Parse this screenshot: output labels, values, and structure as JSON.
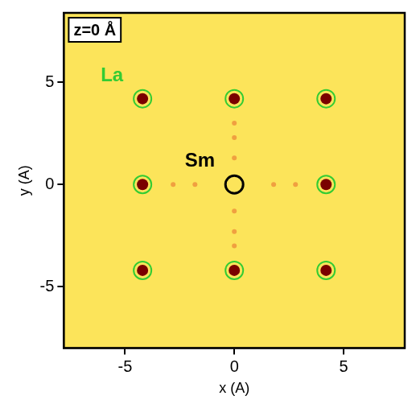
{
  "chart_data": {
    "type": "scatter",
    "annotation": "z=0 Å",
    "xlabel": "x (A)",
    "ylabel": "y (A)",
    "xlim": [
      -7.8,
      7.8
    ],
    "ylim": [
      -8,
      8.4
    ],
    "xticks": [
      -5,
      0,
      5
    ],
    "yticks": [
      -5,
      0,
      5
    ],
    "grid": false,
    "series": [
      {
        "color": "#7a0000",
        "marker": "circle",
        "points": [
          [
            -4.2,
            4.2
          ],
          [
            0,
            4.2
          ],
          [
            4.2,
            4.2
          ],
          [
            -4.2,
            0
          ],
          [
            4.2,
            0
          ],
          [
            -4.2,
            -4.2
          ],
          [
            0,
            -4.2
          ],
          [
            4.2,
            -4.2
          ]
        ]
      },
      {
        "color": "#f0a040",
        "marker": "circle",
        "points": [
          [
            0,
            1.3
          ],
          [
            0,
            2.3
          ],
          [
            0,
            3.0
          ],
          [
            0,
            -1.3
          ],
          [
            0,
            -2.3
          ],
          [
            0,
            -3.0
          ],
          [
            1.8,
            0
          ],
          [
            2.8,
            0
          ],
          [
            -1.8,
            0
          ],
          [
            -2.8,
            0
          ]
        ]
      },
      {
        "name": "La",
        "color": "#33cc33",
        "marker": "open_circle",
        "points": [
          [
            -4.2,
            4.2
          ],
          [
            0,
            4.2
          ],
          [
            4.2,
            4.2
          ],
          [
            -4.2,
            0
          ],
          [
            4.2,
            0
          ],
          [
            -4.2,
            -4.2
          ],
          [
            0,
            -4.2
          ],
          [
            4.2,
            -4.2
          ]
        ]
      },
      {
        "name": "Sm",
        "color": "#000000",
        "marker": "open_circle",
        "points": [
          [
            0,
            0
          ]
        ]
      }
    ]
  }
}
